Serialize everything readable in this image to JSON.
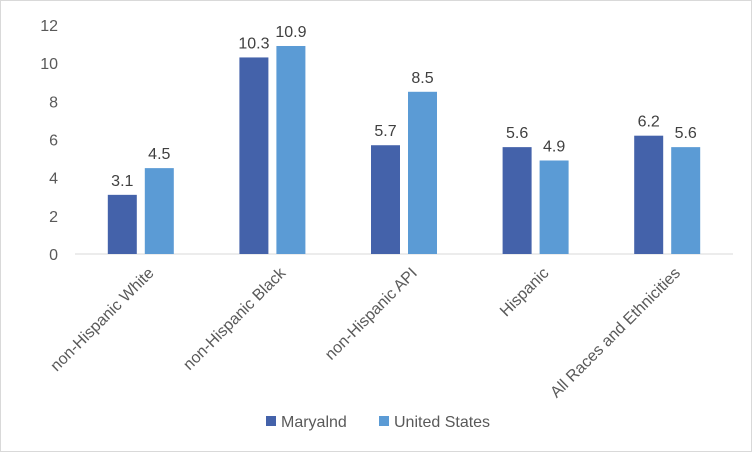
{
  "chart_data": {
    "type": "bar",
    "title": "",
    "xlabel": "",
    "ylabel": "",
    "categories": [
      "non-Hispanic White",
      "non-Hispanic Black",
      "non-Hispanic API",
      "Hispanic",
      "All Races and Ethnicities"
    ],
    "series": [
      {
        "name": "Maryalnd",
        "values": [
          3.1,
          10.3,
          5.7,
          5.6,
          6.2
        ],
        "color": "#4462aa"
      },
      {
        "name": "United States",
        "values": [
          4.5,
          10.9,
          8.5,
          4.9,
          5.6
        ],
        "color": "#5b9bd5"
      }
    ],
    "ylim": [
      0,
      12
    ],
    "yticks": [
      "0",
      "2",
      "4",
      "6",
      "8",
      "10",
      "12"
    ],
    "data_labels": [
      [
        "3.1",
        "10.3",
        "5.7",
        "5.6",
        "6.2"
      ],
      [
        "4.5",
        "10.9",
        "8.5",
        "4.9",
        "5.6"
      ]
    ],
    "grid": false,
    "legend": "bottom"
  }
}
